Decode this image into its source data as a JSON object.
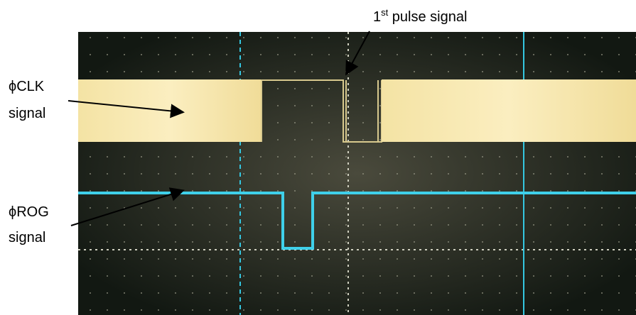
{
  "annotations": {
    "pulse": {
      "main": "1",
      "sup": "st",
      "rest": " pulse signal"
    },
    "clk": {
      "line1": "ϕCLK",
      "line2": "signal"
    },
    "rog": {
      "line1": "ϕROG",
      "line2": "signal"
    }
  }
}
